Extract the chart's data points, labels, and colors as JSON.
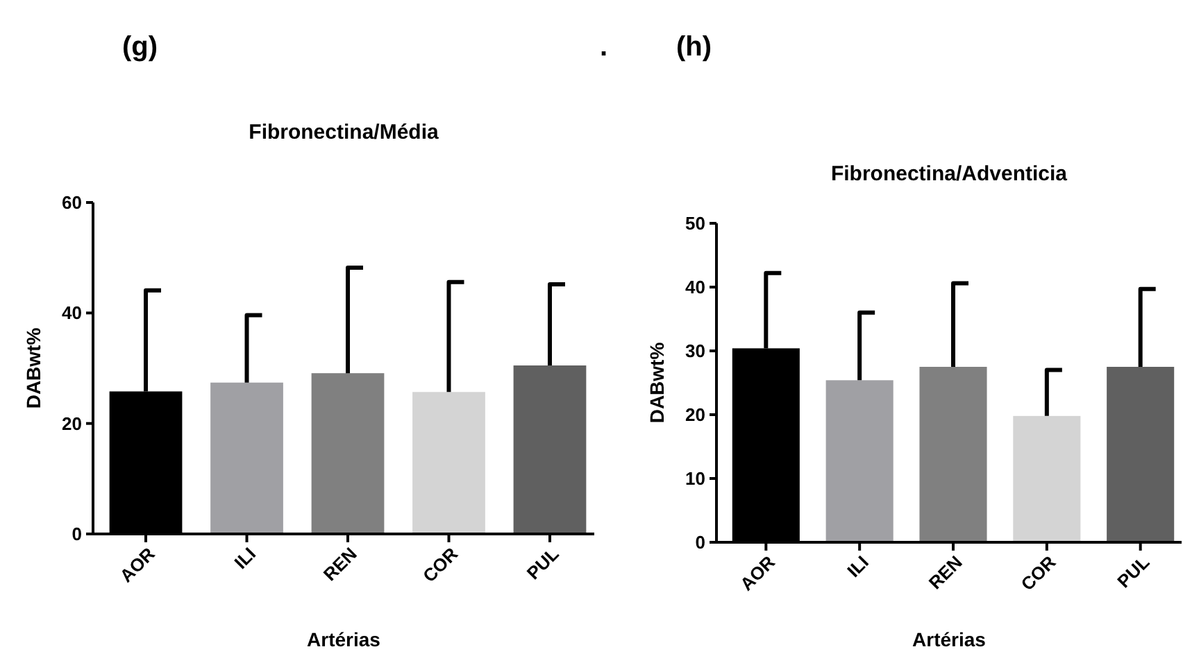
{
  "chart_data": [
    {
      "type": "bar",
      "title": "Fibronectina/Média",
      "xlabel": "Artérias",
      "ylabel": "DABwt%",
      "annotations": [
        "(g)",
        "."
      ],
      "categories": [
        "AOR",
        "ILI",
        "REN",
        "COR",
        "PUL"
      ],
      "values": [
        25.8,
        27.4,
        29.1,
        25.7,
        30.5
      ],
      "errors": [
        [
          25.8,
          44.1
        ],
        [
          27.4,
          39.6
        ],
        [
          29.1,
          48.2
        ],
        [
          25.7,
          45.6
        ],
        [
          30.5,
          45.2
        ]
      ],
      "colors": [
        "#000000",
        "#a0a0a4",
        "#808080",
        "#d4d4d4",
        "#606060"
      ],
      "ylim": [
        0,
        60
      ],
      "yticks": [
        0,
        20,
        40,
        60
      ],
      "grid": false
    },
    {
      "type": "bar",
      "title": "Fibronectina/Adventicia",
      "xlabel": "Artérias",
      "ylabel": "DABwt%",
      "annotations": [
        "(h)"
      ],
      "categories": [
        "AOR",
        "ILI",
        "REN",
        "COR",
        "PUL"
      ],
      "values": [
        30.4,
        25.4,
        27.5,
        19.8,
        27.5
      ],
      "errors": [
        [
          30.4,
          42.2
        ],
        [
          25.4,
          36.0
        ],
        [
          27.5,
          40.6
        ],
        [
          19.8,
          27.0
        ],
        [
          27.5,
          39.7
        ]
      ],
      "colors": [
        "#000000",
        "#a0a0a4",
        "#808080",
        "#d4d4d4",
        "#606060"
      ],
      "ylim": [
        0,
        50
      ],
      "yticks": [
        0,
        10,
        20,
        30,
        40,
        50
      ],
      "grid": false
    }
  ]
}
